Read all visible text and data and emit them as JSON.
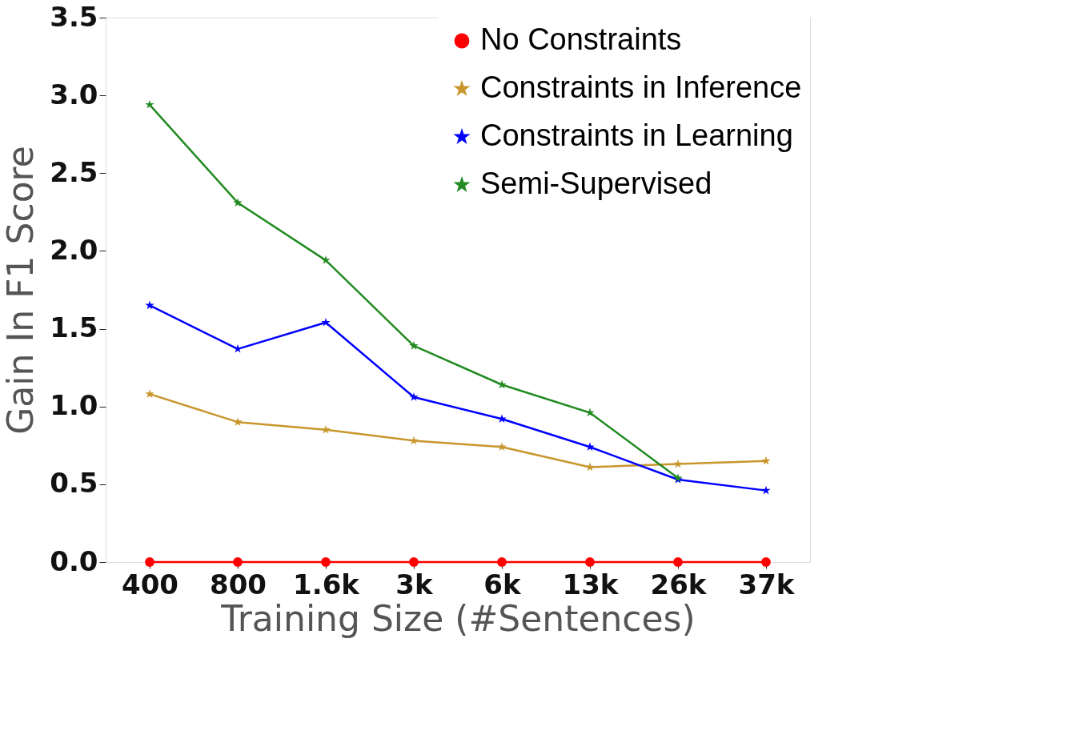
{
  "chart_data": {
    "type": "line",
    "xlabel": "Training Size (#Sentences)",
    "ylabel": "Gain In F1 Score",
    "categories": [
      "400",
      "800",
      "1.6k",
      "3k",
      "6k",
      "13k",
      "26k",
      "37k"
    ],
    "series": [
      {
        "name": "No Constraints",
        "color": "#ff0000",
        "marker": "circle",
        "values": [
          0,
          0,
          0,
          0,
          0,
          0,
          0,
          0
        ]
      },
      {
        "name": "Constraints in Inference",
        "color": "#c8962d",
        "marker": "star",
        "values": [
          1.08,
          0.9,
          0.85,
          0.78,
          0.74,
          0.61,
          0.63,
          0.65
        ]
      },
      {
        "name": "Constraints in Learning",
        "color": "#0000ff",
        "marker": "star",
        "values": [
          1.65,
          1.37,
          1.54,
          1.06,
          0.92,
          0.74,
          0.53,
          0.46
        ]
      },
      {
        "name": "Semi-Supervised",
        "color": "#228b22",
        "marker": "star",
        "values": [
          2.94,
          2.31,
          1.94,
          1.39,
          1.14,
          0.96,
          0.54,
          null
        ]
      }
    ],
    "ylim": [
      0,
      3.5
    ],
    "yticks": [
      {
        "value": 0,
        "label": "0.0"
      },
      {
        "value": 0.5,
        "label": "0.5"
      },
      {
        "value": 1,
        "label": "1.0"
      },
      {
        "value": 1.5,
        "label": "1.5"
      },
      {
        "value": 2,
        "label": "2.0"
      },
      {
        "value": 2.5,
        "label": "2.5"
      },
      {
        "value": 3,
        "label": "3.0"
      },
      {
        "value": 3.5,
        "label": "3.5"
      }
    ],
    "grid": false,
    "legend": "top right",
    "line_style": "solid"
  }
}
